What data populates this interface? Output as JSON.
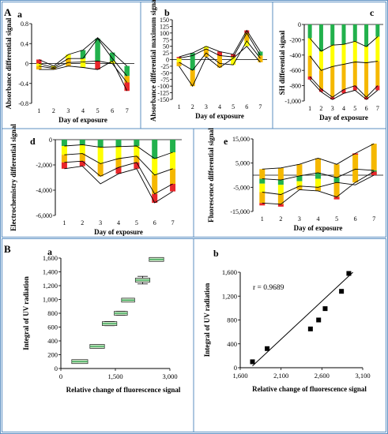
{
  "labels": {
    "A": "A",
    "B": "B"
  },
  "chart_data": [
    {
      "id": "Aa",
      "type": "line",
      "panel_label": "a",
      "xlabel": "Day of exposure",
      "ylabel": "Absorbance differential signal",
      "x": [
        1,
        2,
        3,
        4,
        5,
        6,
        7
      ],
      "ylim": [
        -0.8,
        0.8
      ],
      "yticks": [
        -0.8,
        -0.4,
        0,
        0.4,
        0.8
      ],
      "yticklabels": [
        "-0.8",
        "-0.4",
        "0",
        "0.4",
        "0.8"
      ],
      "series": [
        {
          "values": [
            0.08,
            -0.05,
            0.18,
            0.27,
            0.52,
            0.22,
            -0.05
          ]
        },
        {
          "values": [
            0.0,
            -0.08,
            0.1,
            0.1,
            0.5,
            0.1,
            -0.25
          ]
        },
        {
          "values": [
            -0.05,
            -0.1,
            0.02,
            0.03,
            0.05,
            0.0,
            -0.38
          ]
        },
        {
          "values": [
            -0.12,
            -0.12,
            -0.05,
            -0.08,
            -0.12,
            0.05,
            -0.55
          ]
        }
      ],
      "bar_segments": [
        [
          [
            0.08,
            0.0,
            "#e8262a"
          ],
          [
            0.0,
            -0.05,
            "#ffff00"
          ],
          [
            -0.05,
            -0.12,
            "#f5b800"
          ]
        ],
        [
          [
            -0.05,
            -0.08,
            "#ffff00"
          ],
          [
            -0.08,
            -0.12,
            "#f5b800"
          ]
        ],
        [
          [
            0.18,
            0.1,
            "#ffff00"
          ],
          [
            0.1,
            -0.05,
            "#f5b800"
          ]
        ],
        [
          [
            0.27,
            0.1,
            "#22b14c"
          ],
          [
            0.1,
            -0.08,
            "#ffff00"
          ]
        ],
        [
          [
            0.5,
            0.05,
            "#22b14c"
          ],
          [
            0.05,
            -0.12,
            "#e8262a"
          ]
        ],
        [
          [
            0.22,
            0.0,
            "#22b14c"
          ],
          [
            0.0,
            0.05,
            "#ffff00"
          ]
        ],
        [
          [
            -0.05,
            -0.25,
            "#22b14c"
          ],
          [
            -0.25,
            -0.38,
            "#f5b800"
          ],
          [
            -0.38,
            -0.55,
            "#e8262a"
          ]
        ]
      ]
    },
    {
      "id": "Ab",
      "type": "line",
      "panel_label": "b",
      "xlabel": "Day of exposure",
      "ylabel": "Absorbance differential maximum signal",
      "x": [
        1,
        2,
        3,
        4,
        5,
        6,
        7
      ],
      "ylim": [
        -150,
        150
      ],
      "yticks": [
        -150,
        -125,
        -100,
        -75,
        -50,
        -25,
        0,
        25,
        50,
        75,
        100,
        125,
        150
      ],
      "yticklabels": [
        "-150",
        "-125",
        "-100",
        "-75",
        "-50",
        "-25",
        "0",
        "25",
        "50",
        "75",
        "100",
        "125",
        "150"
      ],
      "series": [
        {
          "values": [
            10,
            25,
            50,
            30,
            20,
            110,
            30
          ]
        },
        {
          "values": [
            5,
            15,
            40,
            15,
            10,
            100,
            15
          ]
        },
        {
          "values": [
            -10,
            -40,
            25,
            -15,
            -20,
            70,
            5
          ]
        },
        {
          "values": [
            -25,
            -100,
            10,
            -30,
            5,
            50,
            -10
          ]
        }
      ],
      "bar_segments": [
        [
          [
            10,
            5,
            "#e8262a"
          ],
          [
            5,
            -10,
            "#ffff00"
          ],
          [
            -10,
            -25,
            "#f5b800"
          ]
        ],
        [
          [
            25,
            15,
            "#22b14c"
          ],
          [
            15,
            -40,
            "#22b14c"
          ],
          [
            -40,
            -100,
            "#f5b800"
          ]
        ],
        [
          [
            50,
            40,
            "#ffff00"
          ],
          [
            40,
            10,
            "#f5b800"
          ]
        ],
        [
          [
            30,
            15,
            "#e8262a"
          ],
          [
            15,
            -30,
            "#f5b800"
          ]
        ],
        [
          [
            20,
            10,
            "#e8262a"
          ],
          [
            10,
            -20,
            "#ffff00"
          ]
        ],
        [
          [
            110,
            100,
            "#e8262a"
          ],
          [
            100,
            70,
            "#f5b800"
          ],
          [
            70,
            50,
            "#ffff00"
          ]
        ],
        [
          [
            30,
            15,
            "#22b14c"
          ],
          [
            15,
            -10,
            "#f5b800"
          ]
        ]
      ]
    },
    {
      "id": "Ac",
      "type": "line",
      "panel_label": "c",
      "xlabel": "Day of exposure",
      "ylabel": "SH differential signal",
      "x": [
        1,
        2,
        3,
        4,
        5,
        6,
        7
      ],
      "ylim": [
        -1000,
        0
      ],
      "yticks": [
        -1000,
        -800,
        -600,
        -400,
        -200,
        0
      ],
      "yticklabels": [
        "-1,000",
        "-800",
        "-600",
        "-400",
        "-200",
        "0"
      ],
      "series": [
        {
          "values": [
            -180,
            -350,
            -270,
            -260,
            -220,
            -290,
            -160
          ]
        },
        {
          "values": [
            -410,
            -600,
            -550,
            -520,
            -490,
            -500,
            -480
          ]
        },
        {
          "values": [
            -680,
            -840,
            -950,
            -850,
            -800,
            -950,
            -800
          ]
        },
        {
          "values": [
            -720,
            -880,
            -980,
            -900,
            -860,
            -980,
            -860
          ]
        }
      ],
      "bar_segments": [
        [
          [
            0,
            -180,
            "#22b14c"
          ],
          [
            -180,
            -410,
            "#ffff00"
          ],
          [
            -410,
            -680,
            "#f5b800"
          ],
          [
            -680,
            -720,
            "#e8262a"
          ]
        ],
        [
          [
            0,
            -350,
            "#22b14c"
          ],
          [
            -350,
            -600,
            "#ffff00"
          ],
          [
            -600,
            -840,
            "#f5b800"
          ],
          [
            -840,
            -880,
            "#e8262a"
          ]
        ],
        [
          [
            0,
            -270,
            "#22b14c"
          ],
          [
            -270,
            -550,
            "#ffff00"
          ],
          [
            -550,
            -950,
            "#f5b800"
          ],
          [
            -950,
            -980,
            "#e8262a"
          ]
        ],
        [
          [
            0,
            -260,
            "#22b14c"
          ],
          [
            -260,
            -520,
            "#ffff00"
          ],
          [
            -520,
            -850,
            "#f5b800"
          ],
          [
            -850,
            -900,
            "#e8262a"
          ]
        ],
        [
          [
            0,
            -220,
            "#22b14c"
          ],
          [
            -220,
            -490,
            "#ffff00"
          ],
          [
            -490,
            -800,
            "#f5b800"
          ],
          [
            -800,
            -860,
            "#e8262a"
          ]
        ],
        [
          [
            0,
            -290,
            "#22b14c"
          ],
          [
            -290,
            -500,
            "#ffff00"
          ],
          [
            -500,
            -950,
            "#f5b800"
          ],
          [
            -950,
            -980,
            "#e8262a"
          ]
        ],
        [
          [
            0,
            -160,
            "#22b14c"
          ],
          [
            -160,
            -480,
            "#ffff00"
          ],
          [
            -480,
            -800,
            "#f5b800"
          ],
          [
            -800,
            -860,
            "#e8262a"
          ]
        ]
      ]
    },
    {
      "id": "Ad",
      "type": "line",
      "panel_label": "d",
      "xlabel": "Day of exposure",
      "ylabel": "Electrochemistry differential signal",
      "x": [
        1,
        2,
        3,
        4,
        5,
        6,
        7
      ],
      "ylim": [
        -6000,
        0
      ],
      "yticks": [
        -6000,
        -4000,
        -2000,
        0
      ],
      "yticklabels": [
        "-6,000",
        "-4,000",
        "-2,000",
        "0"
      ],
      "series": [
        {
          "values": [
            -500,
            -400,
            -600,
            -550,
            -500,
            -1500,
            -1000
          ]
        },
        {
          "values": [
            -1200,
            -1100,
            -1900,
            -1500,
            -1300,
            -2800,
            -2300
          ]
        },
        {
          "values": [
            -1800,
            -1700,
            -2900,
            -2200,
            -1800,
            -4300,
            -3500
          ]
        },
        {
          "values": [
            -2300,
            -2100,
            -3500,
            -2700,
            -2300,
            -5000,
            -4100
          ]
        }
      ],
      "bar_segments": [
        [
          [
            0,
            -500,
            "#22b14c"
          ],
          [
            -500,
            -1200,
            "#ffff00"
          ],
          [
            -1200,
            -1800,
            "#f5b800"
          ],
          [
            -1800,
            -2300,
            "#e8262a"
          ]
        ],
        [
          [
            0,
            -400,
            "#22b14c"
          ],
          [
            -400,
            -1100,
            "#ffff00"
          ],
          [
            -1100,
            -1700,
            "#f5b800"
          ],
          [
            -1700,
            -2100,
            "#e8262a"
          ]
        ],
        [
          [
            0,
            -600,
            "#22b14c"
          ],
          [
            -600,
            -1900,
            "#ffff00"
          ],
          [
            -1900,
            -2900,
            "#f5b800"
          ]
        ],
        [
          [
            0,
            -550,
            "#22b14c"
          ],
          [
            -550,
            -1500,
            "#ffff00"
          ],
          [
            -1500,
            -2200,
            "#f5b800"
          ],
          [
            -2200,
            -2700,
            "#e8262a"
          ]
        ],
        [
          [
            0,
            -500,
            "#22b14c"
          ],
          [
            -500,
            -1300,
            "#ffff00"
          ],
          [
            -1300,
            -1800,
            "#f5b800"
          ],
          [
            -1800,
            -2300,
            "#e8262a"
          ]
        ],
        [
          [
            0,
            -1500,
            "#22b14c"
          ],
          [
            -1500,
            -2800,
            "#ffff00"
          ],
          [
            -2800,
            -4300,
            "#f5b800"
          ],
          [
            -4300,
            -5000,
            "#e8262a"
          ]
        ],
        [
          [
            0,
            -1000,
            "#22b14c"
          ],
          [
            -1000,
            -2300,
            "#ffff00"
          ],
          [
            -2300,
            -3500,
            "#f5b800"
          ],
          [
            -3500,
            -4100,
            "#e8262a"
          ]
        ]
      ]
    },
    {
      "id": "Ae",
      "type": "line",
      "panel_label": "e",
      "xlabel": "Day of exposure",
      "ylabel": "Fluorescence differential signal",
      "x": [
        1,
        2,
        3,
        4,
        5,
        6,
        7
      ],
      "ylim": [
        -15000,
        15000
      ],
      "yticks": [
        -15000,
        -5000,
        5000,
        15000
      ],
      "yticklabels": [
        "-15,000",
        "-5,000",
        "5,000",
        "15,000"
      ],
      "series": [
        {
          "values": [
            2500,
            3000,
            4500,
            7000,
            4500,
            9000,
            13000
          ]
        },
        {
          "values": [
            -1500,
            -2000,
            -300,
            1000,
            -1000,
            2500,
            2000
          ]
        },
        {
          "values": [
            -7000,
            -8000,
            -4500,
            -5000,
            -3000,
            -4000,
            0
          ]
        },
        {
          "values": [
            -11500,
            -12000,
            -6000,
            -6500,
            -9000,
            -3000,
            1500
          ]
        }
      ],
      "bar_segments": [
        [
          [
            2500,
            -1500,
            "#f5b800"
          ],
          [
            -1500,
            -3500,
            "#22b14c"
          ],
          [
            -3500,
            -7000,
            "#ffff00"
          ],
          [
            -7000,
            -11500,
            "#f5b800"
          ],
          [
            -11500,
            -12500,
            "#e8262a"
          ]
        ],
        [
          [
            3000,
            -2000,
            "#f5b800"
          ],
          [
            -2000,
            -4000,
            "#22b14c"
          ],
          [
            -4000,
            -8000,
            "#ffff00"
          ],
          [
            -8000,
            -12000,
            "#f5b800"
          ],
          [
            -12000,
            -13000,
            "#e8262a"
          ]
        ],
        [
          [
            4500,
            -300,
            "#f5b800"
          ],
          [
            -300,
            -2500,
            "#22b14c"
          ],
          [
            -2500,
            -4500,
            "#ffff00"
          ],
          [
            -4500,
            -6000,
            "#f5b800"
          ]
        ],
        [
          [
            7000,
            1000,
            "#f5b800"
          ],
          [
            1000,
            -1500,
            "#22b14c"
          ],
          [
            -1500,
            -5000,
            "#ffff00"
          ],
          [
            -5000,
            -6500,
            "#f5b800"
          ]
        ],
        [
          [
            4500,
            -1000,
            "#f5b800"
          ],
          [
            -1000,
            -3000,
            "#22b14c"
          ],
          [
            -3000,
            -9000,
            "#f5b800"
          ],
          [
            -9000,
            -10000,
            "#e8262a"
          ]
        ],
        [
          [
            9000,
            2500,
            "#f5b800"
          ],
          [
            2500,
            -3000,
            "#f5b800"
          ],
          [
            8500,
            9000,
            "#e8262a"
          ]
        ],
        [
          [
            13000,
            2000,
            "#f5b800"
          ],
          [
            2000,
            0,
            "#22b14c"
          ],
          [
            0,
            1500,
            "#e8262a"
          ]
        ]
      ]
    },
    {
      "id": "Ba",
      "type": "box",
      "panel_label": "a",
      "xlabel": "Relative change of fluorescence signal",
      "ylabel": "Integral of UV radiation",
      "xlim": [
        0,
        3000
      ],
      "xticks": [
        0,
        1500,
        3000
      ],
      "xticklabels": [
        "0",
        "1,500",
        "3,000"
      ],
      "ylim": [
        0,
        1600
      ],
      "yticks": [
        0,
        200,
        400,
        600,
        800,
        1000,
        1200,
        1400,
        1600
      ],
      "yticklabels": [
        "0",
        "200",
        "400",
        "600",
        "800",
        "1,000",
        "1,200",
        "1,400",
        "1,600"
      ],
      "boxes": [
        {
          "x": 520,
          "y": 100,
          "whisker": 12,
          "half_width": 220
        },
        {
          "x": 1000,
          "y": 320,
          "whisker": 25,
          "half_width": 200
        },
        {
          "x": 1340,
          "y": 650,
          "whisker": 30,
          "half_width": 200
        },
        {
          "x": 1650,
          "y": 800,
          "whisker": 30,
          "half_width": 180
        },
        {
          "x": 1850,
          "y": 990,
          "whisker": 10,
          "half_width": 180
        },
        {
          "x": 2250,
          "y": 1280,
          "whisker": 55,
          "half_width": 200
        },
        {
          "x": 2630,
          "y": 1580,
          "whisker": 25,
          "half_width": 200
        }
      ]
    },
    {
      "id": "Bb",
      "type": "scatter",
      "panel_label": "b",
      "xlabel": "Relative change of fluorescence signal",
      "ylabel": "Integral of UV radiation",
      "annotation": "r = 0.9689",
      "xlim": [
        1600,
        3100
      ],
      "xticks": [
        1600,
        2100,
        2600,
        3100
      ],
      "xticklabels": [
        "1,600",
        "2,100",
        "2,600",
        "3,100"
      ],
      "ylim": [
        0,
        1600
      ],
      "yticks": [
        0,
        400,
        800,
        1200,
        1600
      ],
      "yticklabels": [
        "0",
        "400",
        "800",
        "1,200",
        "1,600"
      ],
      "points": [
        [
          1750,
          100
        ],
        [
          1930,
          320
        ],
        [
          2460,
          650
        ],
        [
          2560,
          800
        ],
        [
          2640,
          990
        ],
        [
          2840,
          1280
        ],
        [
          2930,
          1580
        ]
      ],
      "fit": [
        [
          1750,
          30
        ],
        [
          2980,
          1600
        ]
      ]
    }
  ]
}
